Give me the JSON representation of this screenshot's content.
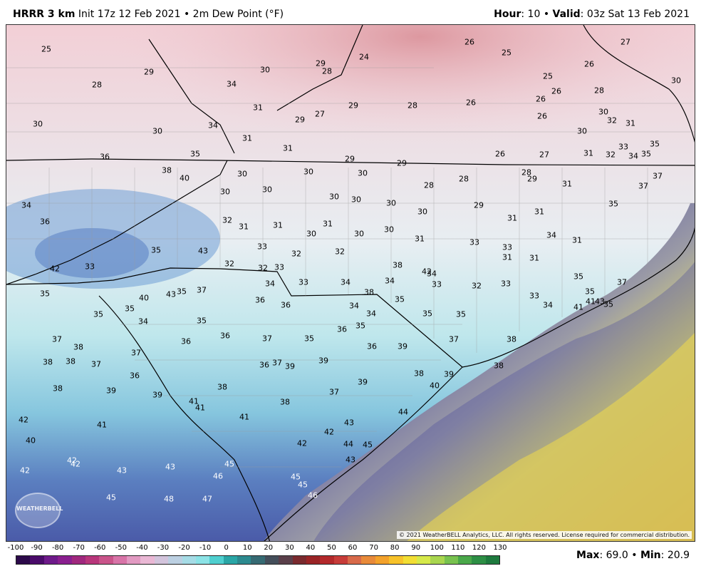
{
  "header": {
    "model": "HRRR 3 km",
    "init": "Init 17z 12 Feb 2021",
    "sep1": "•",
    "variable": "2m Dew Point (°F)",
    "hour_label": "Hour",
    "hour_value": ": 10",
    "sep2": "•",
    "valid_label": "Valid",
    "valid_value": ": 03z Sat 13 Feb 2021"
  },
  "map": {
    "copyright": "© 2021 WeatherBELL Analytics, LLC. All rights reserved. License required for commercial distribution.",
    "logo_text": "WEATHERBELL",
    "values": [
      {
        "v": "25"
      },
      {
        "v": "29"
      },
      {
        "v": "28"
      },
      {
        "v": "34"
      },
      {
        "v": "30"
      },
      {
        "v": "29"
      },
      {
        "v": "28"
      },
      {
        "v": "24"
      },
      {
        "v": "26"
      },
      {
        "v": "25"
      },
      {
        "v": "27"
      },
      {
        "v": "26"
      },
      {
        "v": "25"
      },
      {
        "v": "30"
      },
      {
        "v": "30"
      },
      {
        "v": "31"
      },
      {
        "v": "29"
      },
      {
        "v": "34"
      },
      {
        "v": "30"
      },
      {
        "v": "27"
      },
      {
        "v": "29"
      },
      {
        "v": "28"
      },
      {
        "v": "26"
      },
      {
        "v": "26"
      },
      {
        "v": "26"
      },
      {
        "v": "28"
      },
      {
        "v": "26"
      },
      {
        "v": "30"
      },
      {
        "v": "30"
      },
      {
        "v": "31"
      },
      {
        "v": "32"
      },
      {
        "v": "36"
      },
      {
        "v": "35"
      },
      {
        "v": "31"
      },
      {
        "v": "31"
      },
      {
        "v": "29"
      },
      {
        "v": "29"
      },
      {
        "v": "26"
      },
      {
        "v": "27"
      },
      {
        "v": "31"
      },
      {
        "v": "32"
      },
      {
        "v": "33"
      },
      {
        "v": "34"
      },
      {
        "v": "35"
      },
      {
        "v": "35"
      },
      {
        "v": "38"
      },
      {
        "v": "40"
      },
      {
        "v": "30"
      },
      {
        "v": "30"
      },
      {
        "v": "30"
      },
      {
        "v": "28"
      },
      {
        "v": "28"
      },
      {
        "v": "29"
      },
      {
        "v": "37"
      },
      {
        "v": "30"
      },
      {
        "v": "30"
      },
      {
        "v": "31"
      },
      {
        "v": "37"
      },
      {
        "v": "34"
      },
      {
        "v": "30"
      },
      {
        "v": "30"
      },
      {
        "v": "28"
      },
      {
        "v": "30"
      },
      {
        "v": "30"
      },
      {
        "v": "29"
      },
      {
        "v": "31"
      },
      {
        "v": "31"
      },
      {
        "v": "35"
      },
      {
        "v": "36"
      },
      {
        "v": "32"
      },
      {
        "v": "31"
      },
      {
        "v": "31"
      },
      {
        "v": "30"
      },
      {
        "v": "31"
      },
      {
        "v": "30"
      },
      {
        "v": "30"
      },
      {
        "v": "31"
      },
      {
        "v": "33"
      },
      {
        "v": "33"
      },
      {
        "v": "34"
      },
      {
        "v": "31"
      },
      {
        "v": "31"
      },
      {
        "v": "31"
      },
      {
        "v": "32"
      },
      {
        "v": "32"
      },
      {
        "v": "33"
      },
      {
        "v": "35"
      },
      {
        "v": "43"
      },
      {
        "v": "42"
      },
      {
        "v": "33"
      },
      {
        "v": "32"
      },
      {
        "v": "32"
      },
      {
        "v": "33"
      },
      {
        "v": "34"
      },
      {
        "v": "33"
      },
      {
        "v": "34"
      },
      {
        "v": "34"
      },
      {
        "v": "38"
      },
      {
        "v": "42"
      },
      {
        "v": "35"
      },
      {
        "v": "35"
      },
      {
        "v": "34"
      },
      {
        "v": "33"
      },
      {
        "v": "32"
      },
      {
        "v": "33"
      },
      {
        "v": "33"
      },
      {
        "v": "34"
      },
      {
        "v": "35"
      },
      {
        "v": "37"
      },
      {
        "v": "40"
      },
      {
        "v": "43"
      },
      {
        "v": "35"
      },
      {
        "v": "37"
      },
      {
        "v": "36"
      },
      {
        "v": "36"
      },
      {
        "v": "34"
      },
      {
        "v": "34"
      },
      {
        "v": "35"
      },
      {
        "v": "35"
      },
      {
        "v": "35"
      },
      {
        "v": "38"
      },
      {
        "v": "41"
      },
      {
        "v": "41"
      },
      {
        "v": "43"
      },
      {
        "v": "35"
      },
      {
        "v": "35"
      },
      {
        "v": "35"
      },
      {
        "v": "34"
      },
      {
        "v": "35"
      },
      {
        "v": "36"
      },
      {
        "v": "37"
      },
      {
        "v": "35"
      },
      {
        "v": "36"
      },
      {
        "v": "35"
      },
      {
        "v": "36"
      },
      {
        "v": "39"
      },
      {
        "v": "37"
      },
      {
        "v": "37"
      },
      {
        "v": "38"
      },
      {
        "v": "38"
      },
      {
        "v": "38"
      },
      {
        "v": "37"
      },
      {
        "v": "37"
      },
      {
        "v": "36"
      },
      {
        "v": "36"
      },
      {
        "v": "36"
      },
      {
        "v": "37"
      },
      {
        "v": "39"
      },
      {
        "v": "39"
      },
      {
        "v": "38"
      },
      {
        "v": "39"
      },
      {
        "v": "38"
      },
      {
        "v": "38"
      },
      {
        "v": "38"
      },
      {
        "v": "39"
      },
      {
        "v": "39"
      },
      {
        "v": "38"
      },
      {
        "v": "38"
      },
      {
        "v": "37"
      },
      {
        "v": "39"
      },
      {
        "v": "40"
      },
      {
        "v": "41"
      },
      {
        "v": "41"
      },
      {
        "v": "41"
      },
      {
        "v": "42"
      },
      {
        "v": "41"
      },
      {
        "v": "40"
      },
      {
        "v": "42"
      },
      {
        "v": "42"
      },
      {
        "v": "43"
      },
      {
        "v": "44"
      },
      {
        "v": "44"
      },
      {
        "v": "45"
      },
      {
        "v": "43"
      },
      {
        "v": "42"
      },
      {
        "v": "42"
      },
      {
        "v": "42"
      },
      {
        "v": "43"
      },
      {
        "v": "43"
      },
      {
        "v": "46"
      },
      {
        "v": "45"
      },
      {
        "v": "45"
      },
      {
        "v": "45"
      },
      {
        "v": "46"
      },
      {
        "v": "45"
      },
      {
        "v": "48"
      },
      {
        "v": "47"
      }
    ]
  },
  "colorbar": {
    "ticks": [
      "-100",
      "-90",
      "-80",
      "-70",
      "-60",
      "-50",
      "-40",
      "-30",
      "-20",
      "-10",
      "0",
      "10",
      "20",
      "30",
      "40",
      "50",
      "60",
      "70",
      "80",
      "90",
      "100",
      "110",
      "120",
      "130"
    ],
    "colors": [
      "#2c0a4a",
      "#4a0b6a",
      "#6e1a8a",
      "#8a1f8f",
      "#a0287e",
      "#b8367b",
      "#c9548a",
      "#d874a8",
      "#e29ac2",
      "#eab8d5",
      "#d3c4dc",
      "#bcd0e2",
      "#a6dce6",
      "#8ce3e6",
      "#4fcfcf",
      "#2aa6a6",
      "#2c8a8f",
      "#366a73",
      "#444e5a",
      "#5a3f4a",
      "#7a2a2e",
      "#9a2426",
      "#b3292b",
      "#c73c39",
      "#d86a4a",
      "#e88a3a",
      "#f3a22b",
      "#f7c22a",
      "#f2de34",
      "#d6e94a",
      "#a9d64f",
      "#78c24f",
      "#4aa84a",
      "#2d8f45",
      "#1e7a3e"
    ]
  },
  "stats": {
    "max_label": "Max",
    "max_value": ": 69.0",
    "sep": "•",
    "min_label": "Min",
    "min_value": ": 20.9"
  }
}
